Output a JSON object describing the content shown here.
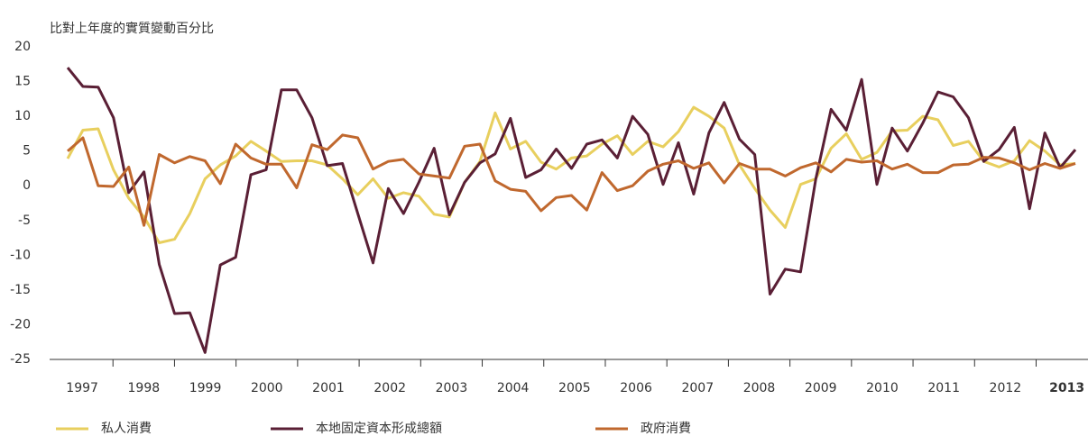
{
  "chart_data": {
    "type": "line",
    "y_axis_label": "比對上年度的實質變動百分比",
    "year_labels": [
      "1997",
      "1998",
      "1999",
      "2000",
      "2001",
      "2002",
      "2003",
      "2004",
      "2005",
      "2006",
      "2007",
      "2008",
      "2009",
      "2010",
      "2011",
      "2012",
      "2013"
    ],
    "bold_year_labels": [
      16
    ],
    "periods_per_year": 4,
    "ylim": [
      -25,
      20
    ],
    "yticks": [
      -25,
      -20,
      -15,
      -10,
      -5,
      0,
      5,
      10,
      15,
      20
    ],
    "grid": false,
    "legend_position": "bottom",
    "series": [
      {
        "name": "私人消費",
        "color": "#e8cf5e",
        "values": [
          3.9,
          8.0,
          8.2,
          2.3,
          -1.8,
          -4.5,
          -8.2,
          -7.7,
          -4.0,
          1.0,
          3.0,
          4.3,
          6.4,
          5.0,
          3.5,
          3.6,
          3.6,
          3.0,
          1.0,
          -1.3,
          1.0,
          -1.8,
          -1.0,
          -1.5,
          -4.1,
          -4.5,
          0.5,
          3.5,
          10.5,
          5.3,
          6.4,
          3.4,
          2.4,
          4.0,
          4.3,
          6.0,
          7.2,
          4.5,
          6.4,
          5.6,
          7.8,
          11.3,
          10.0,
          8.3,
          3.0,
          -0.4,
          -3.5,
          -6.0,
          0.2,
          1.0,
          5.4,
          7.5,
          3.8,
          4.8,
          7.9,
          8.0,
          10.0,
          9.5,
          5.8,
          6.4,
          3.5,
          2.7,
          3.6,
          6.5,
          5.0,
          3.0,
          3.2
        ]
      },
      {
        "name": "本地固定資本形成總額",
        "color": "#5a1f35",
        "values": [
          17.0,
          14.3,
          14.2,
          9.8,
          -1.0,
          2.0,
          -11.3,
          -18.4,
          -18.3,
          -24.0,
          -11.4,
          -10.3,
          1.6,
          2.3,
          13.8,
          13.8,
          9.8,
          2.9,
          3.2,
          -4.0,
          -11.1,
          -0.4,
          -4.0,
          0.5,
          5.4,
          -4.2,
          0.5,
          3.3,
          4.6,
          9.7,
          1.2,
          2.3,
          5.3,
          2.5,
          6.0,
          6.6,
          4.0,
          10.0,
          7.4,
          0.2,
          6.2,
          -1.2,
          7.6,
          12.0,
          6.7,
          4.5,
          -15.6,
          -12.0,
          -12.4,
          1.0,
          11.0,
          8.0,
          15.3,
          0.2,
          8.3,
          5.0,
          9.0,
          13.5,
          12.8,
          9.8,
          3.5,
          5.2,
          8.4,
          -3.3,
          7.6,
          2.6,
          5.2
        ]
      },
      {
        "name": "政府消費",
        "color": "#c0682e",
        "values": [
          5.0,
          6.9,
          0.0,
          -0.1,
          2.7,
          -5.7,
          4.5,
          3.3,
          4.2,
          3.6,
          0.3,
          6.0,
          4.0,
          3.1,
          3.1,
          -0.3,
          5.9,
          5.2,
          7.3,
          6.9,
          2.4,
          3.5,
          3.8,
          1.7,
          1.4,
          1.1,
          5.7,
          6.0,
          0.7,
          -0.5,
          -0.8,
          -3.6,
          -1.7,
          -1.4,
          -3.5,
          1.9,
          -0.7,
          0.0,
          2.1,
          3.1,
          3.6,
          2.5,
          3.3,
          0.4,
          3.2,
          2.4,
          2.4,
          1.4,
          2.6,
          3.3,
          2.0,
          3.8,
          3.4,
          3.6,
          2.4,
          3.1,
          1.9,
          1.9,
          3.0,
          3.1,
          4.1,
          4.0,
          3.3,
          2.3,
          3.2,
          2.5,
          3.2
        ]
      }
    ]
  }
}
